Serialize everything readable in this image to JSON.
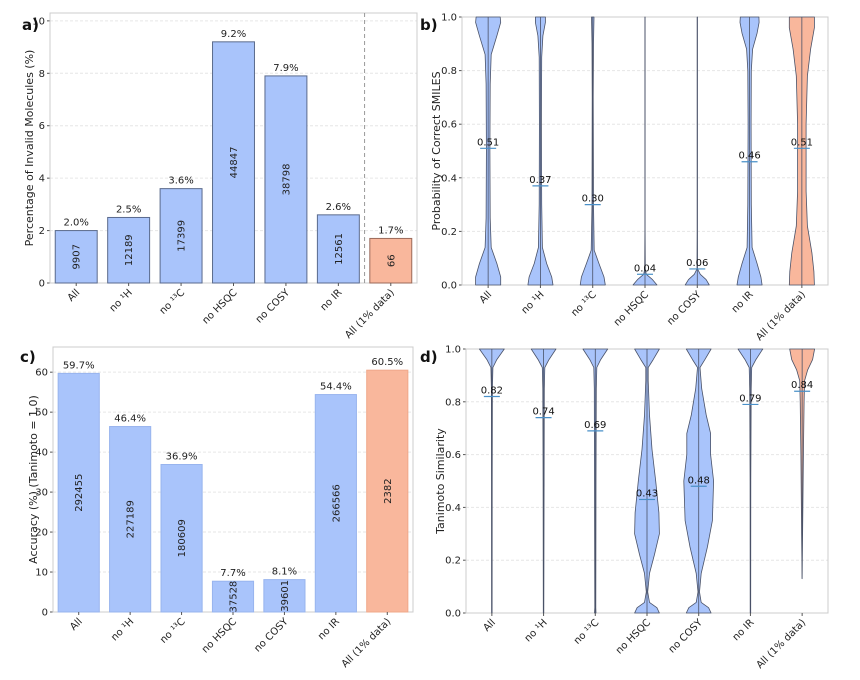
{
  "colors": {
    "blue_fill": "#a9c4fb",
    "blue_edge": "#5a6a8c",
    "orange_fill": "#f9b79c",
    "orange_edge": "#9a6a5a",
    "median_line": "#4a90c8"
  },
  "chart_data": [
    {
      "panel": "a)",
      "type": "bar",
      "title": "",
      "xlabel": "",
      "ylabel": "Percentage of Invalid Molecules (%)",
      "ylim": [
        0,
        10.3
      ],
      "yticks": [
        0,
        2,
        4,
        6,
        8,
        10
      ],
      "grid": true,
      "separator_before_last": true,
      "categories": [
        "All",
        "no ¹H",
        "no ¹³C",
        "no HSQC",
        "no COSY",
        "no IR",
        "All (1% data)"
      ],
      "values": [
        2.0,
        2.5,
        3.6,
        9.2,
        7.9,
        2.6,
        1.7
      ],
      "value_labels": [
        "2.0%",
        "2.5%",
        "3.6%",
        "9.2%",
        "7.9%",
        "2.6%",
        "1.7%"
      ],
      "counts": [
        "9907",
        "12189",
        "17399",
        "44847",
        "38798",
        "12561",
        "66"
      ],
      "highlight": [
        false,
        false,
        false,
        false,
        false,
        false,
        true
      ]
    },
    {
      "panel": "b)",
      "type": "violin",
      "title": "",
      "xlabel": "",
      "ylabel": "Probability of Correct SMILES",
      "ylim": [
        0,
        1
      ],
      "yticks": [
        0.0,
        0.2,
        0.4,
        0.6,
        0.8,
        1.0
      ],
      "ytick_labels": [
        "0.0",
        "0.2",
        "0.4",
        "0.6",
        "0.8",
        "1.0"
      ],
      "grid": true,
      "categories": [
        "All",
        "no ¹H",
        "no ¹³C",
        "no HSQC",
        "no COSY",
        "no IR",
        "All (1% data)"
      ],
      "means": [
        0.51,
        0.37,
        0.3,
        0.04,
        0.06,
        0.46,
        0.51
      ],
      "mean_labels": [
        "0.51",
        "0.37",
        "0.30",
        "0.04",
        "0.06",
        "0.46",
        "0.51"
      ],
      "highlight": [
        false,
        false,
        false,
        false,
        false,
        false,
        true
      ],
      "shapes": [
        [
          [
            0,
            0.5
          ],
          [
            0.03,
            0.5
          ],
          [
            0.08,
            0.35
          ],
          [
            0.14,
            0.12
          ],
          [
            0.25,
            0.08
          ],
          [
            0.5,
            0.07
          ],
          [
            0.75,
            0.08
          ],
          [
            0.86,
            0.12
          ],
          [
            0.93,
            0.35
          ],
          [
            0.98,
            0.5
          ],
          [
            1,
            0.48
          ]
        ],
        [
          [
            0,
            0.5
          ],
          [
            0.03,
            0.45
          ],
          [
            0.08,
            0.25
          ],
          [
            0.14,
            0.08
          ],
          [
            0.3,
            0.05
          ],
          [
            0.6,
            0.04
          ],
          [
            0.85,
            0.05
          ],
          [
            0.93,
            0.1
          ],
          [
            0.98,
            0.2
          ],
          [
            1,
            0.2
          ]
        ],
        [
          [
            0,
            0.5
          ],
          [
            0.03,
            0.45
          ],
          [
            0.08,
            0.25
          ],
          [
            0.13,
            0.06
          ],
          [
            0.3,
            0.03
          ],
          [
            0.7,
            0.02
          ],
          [
            0.9,
            0.03
          ],
          [
            1,
            0.05
          ]
        ],
        [
          [
            0,
            0.48
          ],
          [
            0.02,
            0.3
          ],
          [
            0.04,
            0.05
          ],
          [
            0.06,
            0.01
          ],
          [
            0.2,
            0.005
          ],
          [
            1,
            0.005
          ]
        ],
        [
          [
            0,
            0.48
          ],
          [
            0.02,
            0.35
          ],
          [
            0.04,
            0.12
          ],
          [
            0.06,
            0.01
          ],
          [
            0.2,
            0.005
          ],
          [
            1,
            0.005
          ]
        ],
        [
          [
            0,
            0.5
          ],
          [
            0.03,
            0.45
          ],
          [
            0.08,
            0.3
          ],
          [
            0.14,
            0.1
          ],
          [
            0.3,
            0.07
          ],
          [
            0.6,
            0.06
          ],
          [
            0.8,
            0.07
          ],
          [
            0.88,
            0.12
          ],
          [
            0.94,
            0.3
          ],
          [
            0.98,
            0.38
          ],
          [
            1,
            0.37
          ]
        ],
        [
          [
            0,
            0.5
          ],
          [
            0.05,
            0.48
          ],
          [
            0.12,
            0.4
          ],
          [
            0.22,
            0.22
          ],
          [
            0.35,
            0.17
          ],
          [
            0.6,
            0.17
          ],
          [
            0.78,
            0.22
          ],
          [
            0.88,
            0.35
          ],
          [
            0.96,
            0.5
          ],
          [
            1,
            0.5
          ]
        ]
      ]
    },
    {
      "panel": "c)",
      "type": "bar",
      "title": "",
      "xlabel": "",
      "ylabel": "Accuracy (%) (Tanimoto = 1.0)",
      "ylim": [
        0,
        66.3
      ],
      "yticks": [
        0,
        10,
        20,
        30,
        40,
        50,
        60
      ],
      "grid": true,
      "separator_before_last": false,
      "categories": [
        "All",
        "no ¹H",
        "no ¹³C",
        "no HSQC",
        "no COSY",
        "no IR",
        "All (1% data)"
      ],
      "values": [
        59.7,
        46.4,
        36.9,
        7.7,
        8.1,
        54.4,
        60.5
      ],
      "value_labels": [
        "59.7%",
        "46.4%",
        "36.9%",
        "7.7%",
        "8.1%",
        "54.4%",
        "60.5%"
      ],
      "counts": [
        "292455",
        "227189",
        "180609",
        "37528",
        "39601",
        "266566",
        "2382"
      ],
      "highlight": [
        false,
        false,
        false,
        false,
        false,
        false,
        true
      ]
    },
    {
      "panel": "d)",
      "type": "violin",
      "title": "",
      "xlabel": "",
      "ylabel": "Tanimoto Similarity",
      "ylim": [
        0,
        1
      ],
      "yticks": [
        0.0,
        0.2,
        0.4,
        0.6,
        0.8,
        1.0
      ],
      "ytick_labels": [
        "0.0",
        "0.2",
        "0.4",
        "0.6",
        "0.8",
        "1.0"
      ],
      "grid": true,
      "categories": [
        "All",
        "no ¹H",
        "no ¹³C",
        "no HSQC",
        "no COSY",
        "no IR",
        "All (1% data)"
      ],
      "means": [
        0.82,
        0.74,
        0.69,
        0.43,
        0.48,
        0.79,
        0.84
      ],
      "mean_labels": [
        "0.82",
        "0.74",
        "0.69",
        "0.43",
        "0.48",
        "0.79",
        "0.84"
      ],
      "highlight": [
        false,
        false,
        false,
        false,
        false,
        false,
        true
      ],
      "shapes": [
        [
          [
            0,
            0.01
          ],
          [
            0.5,
            0.015
          ],
          [
            0.85,
            0.02
          ],
          [
            0.93,
            0.04
          ],
          [
            0.96,
            0.2
          ],
          [
            1,
            0.5
          ]
        ],
        [
          [
            0,
            0.01
          ],
          [
            0.5,
            0.02
          ],
          [
            0.85,
            0.03
          ],
          [
            0.93,
            0.05
          ],
          [
            0.96,
            0.22
          ],
          [
            1,
            0.5
          ]
        ],
        [
          [
            0,
            0.03
          ],
          [
            0.02,
            0.02
          ],
          [
            0.5,
            0.03
          ],
          [
            0.85,
            0.04
          ],
          [
            0.93,
            0.06
          ],
          [
            0.96,
            0.22
          ],
          [
            1,
            0.5
          ]
        ],
        [
          [
            0,
            0.5
          ],
          [
            0.02,
            0.4
          ],
          [
            0.04,
            0.1
          ],
          [
            0.08,
            0.03
          ],
          [
            0.15,
            0.1
          ],
          [
            0.22,
            0.3
          ],
          [
            0.3,
            0.5
          ],
          [
            0.38,
            0.48
          ],
          [
            0.5,
            0.35
          ],
          [
            0.62,
            0.2
          ],
          [
            0.75,
            0.1
          ],
          [
            0.88,
            0.05
          ],
          [
            0.93,
            0.05
          ],
          [
            0.96,
            0.25
          ],
          [
            1,
            0.5
          ]
        ],
        [
          [
            0,
            0.5
          ],
          [
            0.02,
            0.4
          ],
          [
            0.04,
            0.1
          ],
          [
            0.08,
            0.03
          ],
          [
            0.15,
            0.1
          ],
          [
            0.25,
            0.35
          ],
          [
            0.35,
            0.55
          ],
          [
            0.5,
            0.6
          ],
          [
            0.6,
            0.48
          ],
          [
            0.68,
            0.48
          ],
          [
            0.75,
            0.3
          ],
          [
            0.85,
            0.12
          ],
          [
            0.93,
            0.05
          ],
          [
            0.96,
            0.25
          ],
          [
            1,
            0.5
          ]
        ],
        [
          [
            0,
            0.01
          ],
          [
            0.5,
            0.015
          ],
          [
            0.85,
            0.03
          ],
          [
            0.93,
            0.05
          ],
          [
            0.96,
            0.22
          ],
          [
            1,
            0.5
          ]
        ],
        [
          [
            0.13,
            0.0
          ],
          [
            0.3,
            0.02
          ],
          [
            0.6,
            0.05
          ],
          [
            0.8,
            0.08
          ],
          [
            0.88,
            0.1
          ],
          [
            0.92,
            0.22
          ],
          [
            0.96,
            0.42
          ],
          [
            1,
            0.5
          ]
        ]
      ]
    }
  ]
}
